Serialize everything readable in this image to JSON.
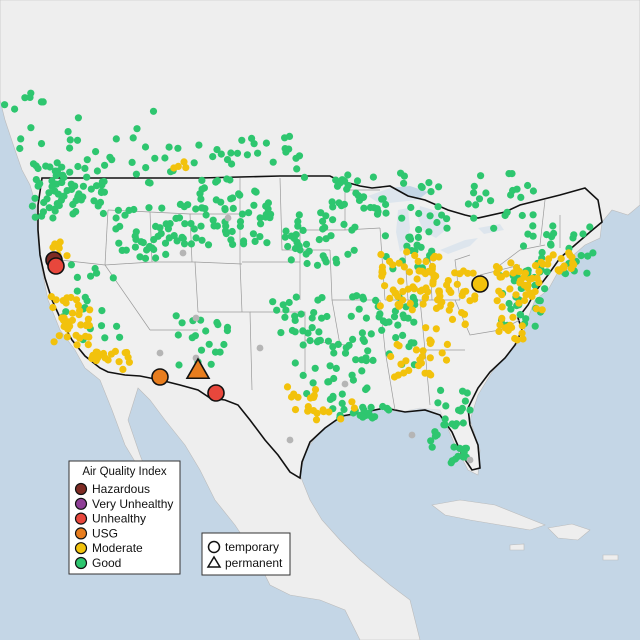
{
  "colors": {
    "water": "#c4d6e6",
    "land": "#eeeeee",
    "us_land": "#f3f3f3",
    "state_border": "#9a9a9a",
    "country_border": "#111111",
    "hazardous": "#7e2b24",
    "very_unhealthy": "#8f3f97",
    "unhealthy": "#e8473c",
    "usg": "#e87d1e",
    "moderate": "#f2c20c",
    "good": "#2ec66f",
    "no_data": "#b5b5b5"
  },
  "aqi_legend": {
    "title": "Air Quality Index",
    "items": [
      {
        "label": "Hazardous",
        "color_key": "hazardous"
      },
      {
        "label": "Very Unhealthy",
        "color_key": "very_unhealthy"
      },
      {
        "label": "Unhealthy",
        "color_key": "unhealthy"
      },
      {
        "label": "USG",
        "color_key": "usg"
      },
      {
        "label": "Moderate",
        "color_key": "moderate"
      },
      {
        "label": "Good",
        "color_key": "good"
      }
    ]
  },
  "type_legend": {
    "items": [
      {
        "label": "temporary",
        "shape": "circle"
      },
      {
        "label": "permanent",
        "shape": "triangle"
      }
    ]
  },
  "highlighted_monitors": [
    {
      "id": "n-california-1",
      "category": "hazardous",
      "shape": "circle"
    },
    {
      "id": "n-california-2",
      "category": "unhealthy",
      "shape": "circle"
    },
    {
      "id": "arizona",
      "category": "usg",
      "shape": "circle"
    },
    {
      "id": "new-mexico",
      "category": "usg",
      "shape": "triangle"
    },
    {
      "id": "s-new-mexico",
      "category": "unhealthy",
      "shape": "circle"
    },
    {
      "id": "ohio",
      "category": "moderate",
      "shape": "circle"
    }
  ],
  "monitor_dot_counts": {
    "good": 520,
    "moderate": 230,
    "no_data": 10
  }
}
